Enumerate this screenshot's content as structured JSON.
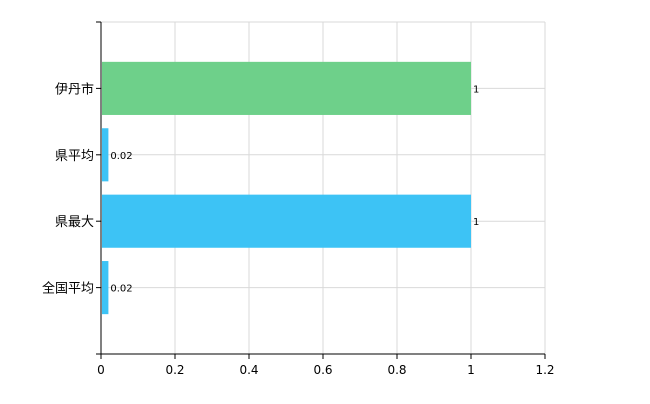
{
  "chart_data": {
    "type": "bar",
    "orientation": "horizontal",
    "categories": [
      "伊丹市",
      "県平均",
      "県最大",
      "全国平均"
    ],
    "values": [
      1,
      0.02,
      1,
      0.02
    ],
    "value_labels": [
      "1",
      "0.02",
      "1",
      "0.02"
    ],
    "bar_colors": [
      "#6ed08a",
      "#3dc3f5",
      "#3dc3f5",
      "#3dc3f5"
    ],
    "xlim": [
      0,
      1.2
    ],
    "x_ticks": [
      0,
      0.2,
      0.4,
      0.6,
      0.8,
      1,
      1.2
    ],
    "x_tick_labels": [
      "0",
      "0.2",
      "0.4",
      "0.6",
      "0.8",
      "1",
      "1.2"
    ],
    "grid": true,
    "legend": false,
    "colors": {
      "grid": "#d9d9d9",
      "axis": "#000000",
      "text": "#000000"
    }
  }
}
